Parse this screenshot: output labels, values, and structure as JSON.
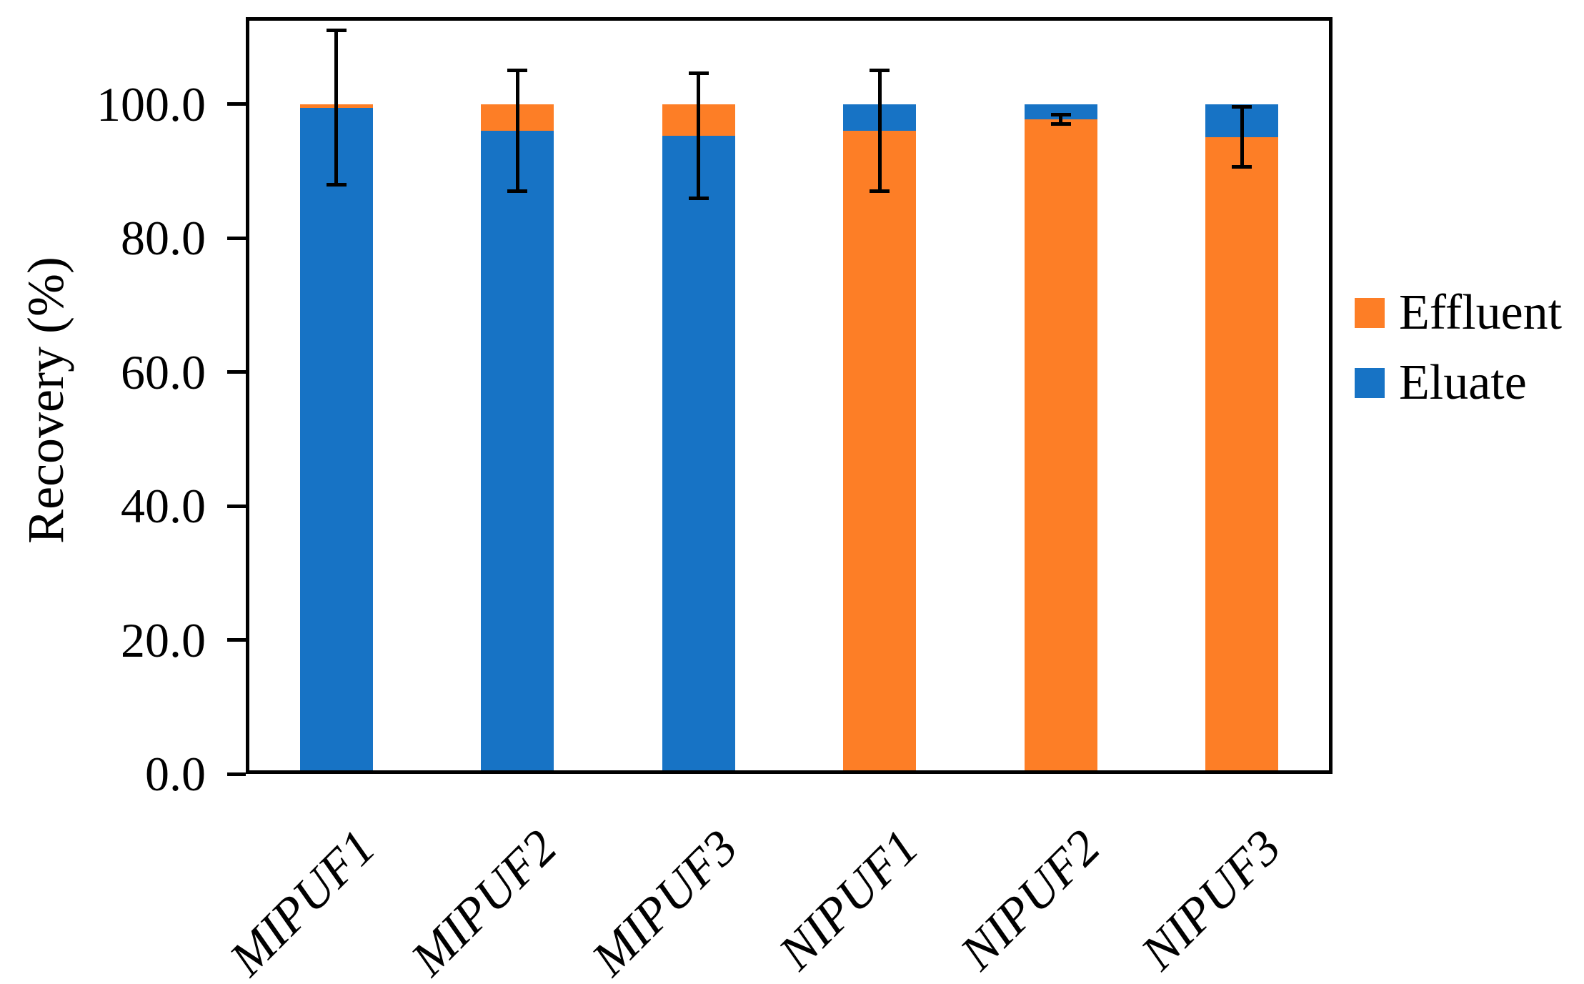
{
  "figure": {
    "background_color": "#ffffff",
    "axis_color": "#000000",
    "text_color": "#000000"
  },
  "chart_data": {
    "type": "bar",
    "stacked": true,
    "orientation": "vertical",
    "title": "",
    "xlabel": "",
    "ylabel": "Recovery (%)",
    "ylim": [
      0,
      113
    ],
    "yticks": [
      0,
      20,
      40,
      60,
      80,
      100
    ],
    "ytick_labels": [
      "0.0",
      "20.0",
      "40.0",
      "60.0",
      "80.0",
      "100.0"
    ],
    "xtick_rotation_deg": 45,
    "xtick_style": "italic",
    "grid": false,
    "plot_border": "full-box",
    "categories": [
      "MIPUF1",
      "MIPUF2",
      "MIPUF3",
      "NIPUF1",
      "NIPUF2",
      "NIPUF3"
    ],
    "series": [
      {
        "name": "Effluent",
        "color": "#fd7e26",
        "values": [
          0.5,
          4.0,
          4.7,
          96.0,
          97.7,
          95.1
        ]
      },
      {
        "name": "Eluate",
        "color": "#1773c5",
        "values": [
          99.5,
          96.0,
          95.3,
          4.0,
          2.3,
          4.9
        ]
      }
    ],
    "stack_order_bottom_first": [
      [
        "Eluate",
        "Effluent"
      ],
      [
        "Eluate",
        "Effluent"
      ],
      [
        "Eluate",
        "Effluent"
      ],
      [
        "Effluent",
        "Eluate"
      ],
      [
        "Effluent",
        "Eluate"
      ],
      [
        "Effluent",
        "Eluate"
      ]
    ],
    "error_bars": {
      "attached_to": "top-of-bottom-segment",
      "color": "#000000",
      "centers": [
        99.5,
        96.0,
        95.3,
        96.0,
        97.7,
        95.1
      ],
      "plus_minus": [
        11.5,
        9.0,
        9.3,
        9.0,
        0.7,
        4.5
      ]
    },
    "legend": {
      "position": "center-right",
      "entries": [
        {
          "name": "Effluent",
          "color": "#fd7e26"
        },
        {
          "name": "Eluate",
          "color": "#1773c5"
        }
      ]
    }
  }
}
